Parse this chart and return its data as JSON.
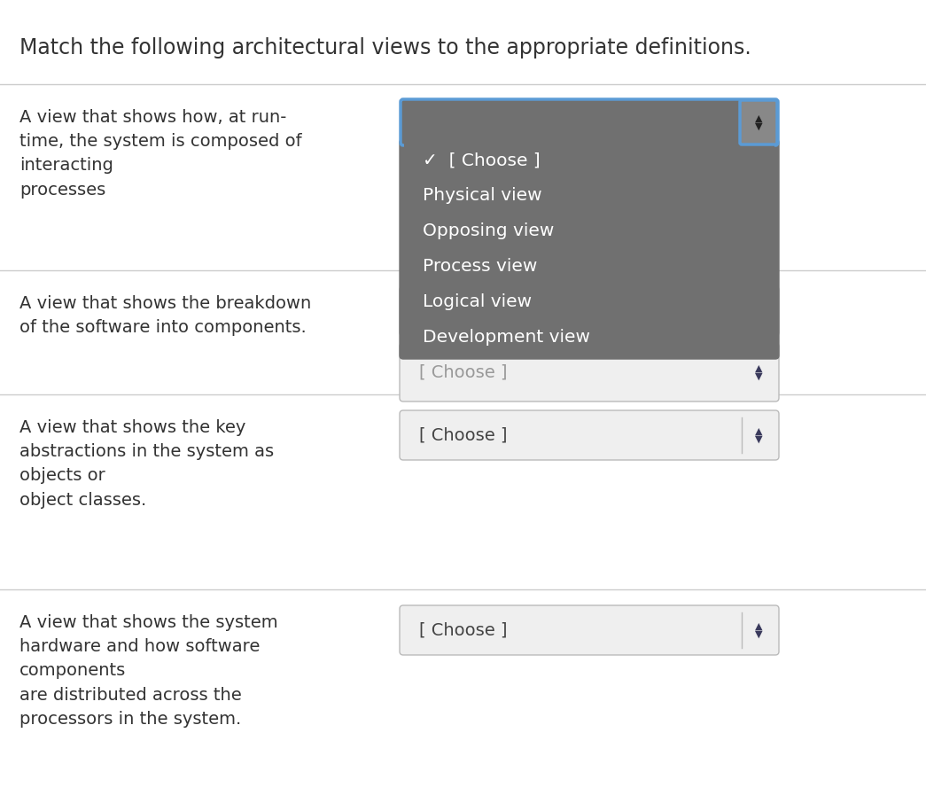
{
  "title": "Match the following architectural views to the appropriate definitions.",
  "background_color": "#ffffff",
  "title_fontsize": 17,
  "rows": [
    {
      "description": "A view that shows how, at run-\ntime, the system is composed of\ninteracting\nprocesses",
      "dropdown_text": "[ Choose ]",
      "dropdown_open": true,
      "dropdown_items": [
        "✓  [ Choose ]",
        "Physical view",
        "Opposing view",
        "Process view",
        "Logical view",
        "Development view"
      ]
    },
    {
      "description": "A view that shows the breakdown\nof the software into components.",
      "dropdown_text": "[ Choose ]",
      "dropdown_open": false,
      "dropdown_items": []
    },
    {
      "description": "A view that shows the key\nabstractions in the system as\nobjects or\nobject classes.",
      "dropdown_text": "[ Choose ]",
      "dropdown_open": false,
      "dropdown_items": []
    },
    {
      "description": "A view that shows the system\nhardware and how software\ncomponents\nare distributed across the\nprocessors in the system.",
      "dropdown_text": "[ Choose ]",
      "dropdown_open": false,
      "dropdown_items": []
    }
  ],
  "separator_color": "#cccccc",
  "dropdown_bg_open": "#707070",
  "dropdown_bg_closed": "#efefef",
  "dropdown_border_open": "#5b9bd5",
  "dropdown_border_closed": "#bbbbbb",
  "dropdown_text_open_color": "#ffffff",
  "dropdown_text_closed_color": "#444444",
  "arrow_color_closed": "#3a3a5c",
  "text_color": "#333333",
  "desc_fontsize": 14,
  "dropdown_fontsize": 14
}
